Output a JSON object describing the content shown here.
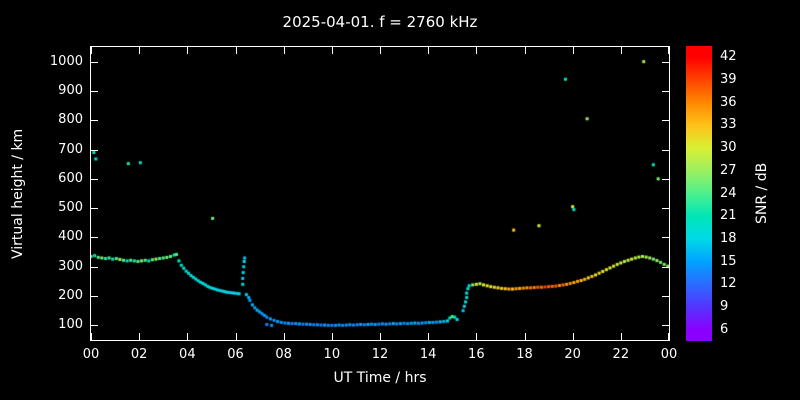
{
  "title": "2025-04-01. f = 2760 kHz",
  "chart_data": {
    "type": "scatter",
    "title": "2025-04-01. f = 2760 kHz",
    "xlabel": "UT Time / hrs",
    "ylabel": "Virtual height / km",
    "xlim": [
      0,
      24
    ],
    "ylim": [
      50,
      1050
    ],
    "grid": false,
    "background": "#000000",
    "x_ticks": [
      {
        "v": 0,
        "label": "00"
      },
      {
        "v": 2,
        "label": "02"
      },
      {
        "v": 4,
        "label": "04"
      },
      {
        "v": 6,
        "label": "06"
      },
      {
        "v": 8,
        "label": "08"
      },
      {
        "v": 10,
        "label": "10"
      },
      {
        "v": 12,
        "label": "12"
      },
      {
        "v": 14,
        "label": "14"
      },
      {
        "v": 16,
        "label": "16"
      },
      {
        "v": 18,
        "label": "18"
      },
      {
        "v": 20,
        "label": "20"
      },
      {
        "v": 22,
        "label": "22"
      },
      {
        "v": 24,
        "label": "00"
      }
    ],
    "y_ticks": [
      100,
      200,
      300,
      400,
      500,
      600,
      700,
      800,
      900,
      1000
    ],
    "colorbar": {
      "label": "SNR / dB",
      "ticks": [
        6,
        9,
        12,
        15,
        18,
        21,
        24,
        27,
        30,
        33,
        36,
        39,
        42
      ],
      "range": [
        4.5,
        43.5
      ]
    },
    "colormap": [
      {
        "v": 6,
        "c": "#8a00ff"
      },
      {
        "v": 9,
        "c": "#5533ff"
      },
      {
        "v": 12,
        "c": "#2b6bff"
      },
      {
        "v": 15,
        "c": "#00a2ff"
      },
      {
        "v": 18,
        "c": "#00d9e6"
      },
      {
        "v": 21,
        "c": "#00e6b8"
      },
      {
        "v": 24,
        "c": "#4df08c"
      },
      {
        "v": 27,
        "c": "#9bf060"
      },
      {
        "v": 30,
        "c": "#d9f033"
      },
      {
        "v": 33,
        "c": "#ffc21a"
      },
      {
        "v": 36,
        "c": "#ff8800"
      },
      {
        "v": 39,
        "c": "#ff4400"
      },
      {
        "v": 42,
        "c": "#ff0000"
      }
    ],
    "points": [
      [
        0.0,
        335,
        24
      ],
      [
        0.15,
        338,
        21
      ],
      [
        0.3,
        332,
        24
      ],
      [
        0.45,
        330,
        26
      ],
      [
        0.6,
        328,
        22
      ],
      [
        0.75,
        330,
        24
      ],
      [
        0.9,
        326,
        21
      ],
      [
        1.05,
        328,
        24
      ],
      [
        1.2,
        325,
        27
      ],
      [
        1.35,
        322,
        24
      ],
      [
        1.5,
        320,
        21
      ],
      [
        1.65,
        322,
        24
      ],
      [
        1.8,
        320,
        22
      ],
      [
        1.95,
        318,
        24
      ],
      [
        2.1,
        320,
        26
      ],
      [
        2.25,
        322,
        24
      ],
      [
        2.4,
        320,
        21
      ],
      [
        2.55,
        324,
        24
      ],
      [
        2.7,
        326,
        27
      ],
      [
        2.85,
        328,
        24
      ],
      [
        3.0,
        330,
        24
      ],
      [
        3.15,
        332,
        26
      ],
      [
        3.3,
        335,
        24
      ],
      [
        3.45,
        340,
        22
      ],
      [
        3.55,
        342,
        24
      ],
      [
        3.65,
        320,
        21
      ],
      [
        3.75,
        305,
        19
      ],
      [
        3.85,
        295,
        21
      ],
      [
        3.95,
        285,
        18
      ],
      [
        4.05,
        278,
        20
      ],
      [
        4.15,
        270,
        18
      ],
      [
        4.25,
        264,
        19
      ],
      [
        4.35,
        258,
        18
      ],
      [
        4.45,
        252,
        20
      ],
      [
        4.55,
        247,
        18
      ],
      [
        4.65,
        243,
        19
      ],
      [
        4.75,
        238,
        18
      ],
      [
        4.85,
        233,
        20
      ],
      [
        4.95,
        229,
        18
      ],
      [
        5.05,
        226,
        18
      ],
      [
        5.15,
        224,
        19
      ],
      [
        5.25,
        221,
        18
      ],
      [
        5.35,
        219,
        17
      ],
      [
        5.45,
        217,
        18
      ],
      [
        5.55,
        215,
        19
      ],
      [
        5.65,
        213,
        18
      ],
      [
        5.75,
        212,
        17
      ],
      [
        5.85,
        211,
        18
      ],
      [
        5.95,
        210,
        18
      ],
      [
        6.05,
        209,
        17
      ],
      [
        6.15,
        208,
        18
      ],
      [
        6.3,
        240,
        18
      ],
      [
        6.3,
        260,
        17
      ],
      [
        6.32,
        280,
        18
      ],
      [
        6.34,
        300,
        17
      ],
      [
        6.36,
        318,
        18
      ],
      [
        6.38,
        330,
        17
      ],
      [
        6.45,
        205,
        17
      ],
      [
        6.55,
        195,
        16
      ],
      [
        6.6,
        185,
        15
      ],
      [
        6.7,
        170,
        16
      ],
      [
        6.8,
        160,
        15
      ],
      [
        6.9,
        152,
        16
      ],
      [
        7.0,
        146,
        15
      ],
      [
        7.1,
        140,
        14
      ],
      [
        7.2,
        134,
        15
      ],
      [
        7.3,
        128,
        14
      ],
      [
        7.3,
        103,
        13
      ],
      [
        7.45,
        122,
        15
      ],
      [
        7.5,
        100,
        14
      ],
      [
        7.6,
        117,
        14
      ],
      [
        7.75,
        113,
        15
      ],
      [
        7.9,
        110,
        14
      ],
      [
        8.05,
        108,
        14
      ],
      [
        8.2,
        107,
        15
      ],
      [
        8.35,
        106,
        13
      ],
      [
        8.5,
        106,
        14
      ],
      [
        8.65,
        105,
        15
      ],
      [
        8.8,
        104,
        13
      ],
      [
        8.95,
        104,
        14
      ],
      [
        9.1,
        103,
        15
      ],
      [
        9.25,
        102,
        13
      ],
      [
        9.4,
        102,
        14
      ],
      [
        9.55,
        101,
        13
      ],
      [
        9.7,
        101,
        15
      ],
      [
        9.85,
        100,
        14
      ],
      [
        10.0,
        100,
        13
      ],
      [
        10.15,
        100,
        14
      ],
      [
        10.3,
        101,
        15
      ],
      [
        10.45,
        100,
        13
      ],
      [
        10.6,
        101,
        14
      ],
      [
        10.75,
        102,
        15
      ],
      [
        10.9,
        101,
        13
      ],
      [
        11.05,
        102,
        14
      ],
      [
        11.2,
        103,
        15
      ],
      [
        11.35,
        102,
        13
      ],
      [
        11.5,
        103,
        16
      ],
      [
        11.65,
        104,
        14
      ],
      [
        11.8,
        103,
        15
      ],
      [
        11.95,
        104,
        13
      ],
      [
        12.1,
        105,
        14
      ],
      [
        12.25,
        104,
        15
      ],
      [
        12.4,
        105,
        13
      ],
      [
        12.55,
        106,
        16
      ],
      [
        12.7,
        105,
        14
      ],
      [
        12.85,
        106,
        15
      ],
      [
        13.0,
        107,
        13
      ],
      [
        13.15,
        106,
        14
      ],
      [
        13.3,
        107,
        15
      ],
      [
        13.45,
        108,
        16
      ],
      [
        13.6,
        107,
        14
      ],
      [
        13.75,
        108,
        15
      ],
      [
        13.9,
        109,
        14
      ],
      [
        14.05,
        110,
        16
      ],
      [
        14.2,
        110,
        15
      ],
      [
        14.35,
        111,
        14
      ],
      [
        14.5,
        112,
        17
      ],
      [
        14.65,
        113,
        16
      ],
      [
        14.8,
        115,
        18
      ],
      [
        14.9,
        125,
        21
      ],
      [
        15.0,
        130,
        24
      ],
      [
        15.1,
        128,
        21
      ],
      [
        15.2,
        120,
        18
      ],
      [
        15.45,
        150,
        17
      ],
      [
        15.5,
        165,
        18
      ],
      [
        15.55,
        180,
        19
      ],
      [
        15.6,
        195,
        18
      ],
      [
        15.6,
        210,
        20
      ],
      [
        15.65,
        225,
        19
      ],
      [
        15.7,
        235,
        18
      ],
      [
        15.85,
        238,
        27
      ],
      [
        16.0,
        240,
        30
      ],
      [
        16.15,
        242,
        28
      ],
      [
        16.3,
        238,
        30
      ],
      [
        16.45,
        235,
        31
      ],
      [
        16.6,
        232,
        30
      ],
      [
        16.75,
        230,
        32
      ],
      [
        16.9,
        228,
        31
      ],
      [
        17.05,
        226,
        33
      ],
      [
        17.2,
        225,
        32
      ],
      [
        17.35,
        224,
        34
      ],
      [
        17.5,
        224,
        33
      ],
      [
        17.65,
        225,
        35
      ],
      [
        17.8,
        226,
        34
      ],
      [
        17.95,
        227,
        36
      ],
      [
        18.1,
        228,
        35
      ],
      [
        18.25,
        228,
        37
      ],
      [
        18.4,
        229,
        36
      ],
      [
        18.55,
        230,
        38
      ],
      [
        18.7,
        230,
        37
      ],
      [
        18.85,
        231,
        39
      ],
      [
        19.0,
        232,
        38
      ],
      [
        19.15,
        233,
        37
      ],
      [
        19.3,
        234,
        38
      ],
      [
        19.45,
        236,
        36
      ],
      [
        19.6,
        238,
        37
      ],
      [
        19.75,
        240,
        35
      ],
      [
        19.9,
        243,
        36
      ],
      [
        20.05,
        246,
        34
      ],
      [
        20.2,
        250,
        35
      ],
      [
        20.35,
        253,
        33
      ],
      [
        20.5,
        257,
        34
      ],
      [
        20.65,
        262,
        32
      ],
      [
        20.8,
        267,
        33
      ],
      [
        20.95,
        272,
        31
      ],
      [
        21.1,
        278,
        32
      ],
      [
        21.25,
        284,
        30
      ],
      [
        21.4,
        290,
        31
      ],
      [
        21.55,
        296,
        30
      ],
      [
        21.7,
        302,
        31
      ],
      [
        21.85,
        308,
        29
      ],
      [
        22.0,
        313,
        30
      ],
      [
        22.15,
        318,
        28
      ],
      [
        22.3,
        322,
        29
      ],
      [
        22.45,
        326,
        30
      ],
      [
        22.6,
        330,
        28
      ],
      [
        22.75,
        333,
        29
      ],
      [
        22.9,
        335,
        27
      ],
      [
        23.05,
        333,
        28
      ],
      [
        23.2,
        330,
        27
      ],
      [
        23.35,
        326,
        26
      ],
      [
        23.5,
        321,
        27
      ],
      [
        23.65,
        315,
        25
      ],
      [
        23.8,
        308,
        26
      ],
      [
        23.95,
        302,
        27
      ],
      [
        0.12,
        690,
        22
      ],
      [
        0.2,
        668,
        20
      ],
      [
        1.55,
        652,
        22
      ],
      [
        2.05,
        655,
        20
      ],
      [
        5.05,
        465,
        25
      ],
      [
        17.55,
        425,
        33
      ],
      [
        18.6,
        440,
        30
      ],
      [
        19.7,
        940,
        21
      ],
      [
        20.0,
        505,
        30
      ],
      [
        20.05,
        495,
        21
      ],
      [
        20.6,
        805,
        27
      ],
      [
        22.95,
        1000,
        27
      ],
      [
        23.35,
        648,
        21
      ],
      [
        23.55,
        600,
        26
      ]
    ]
  }
}
